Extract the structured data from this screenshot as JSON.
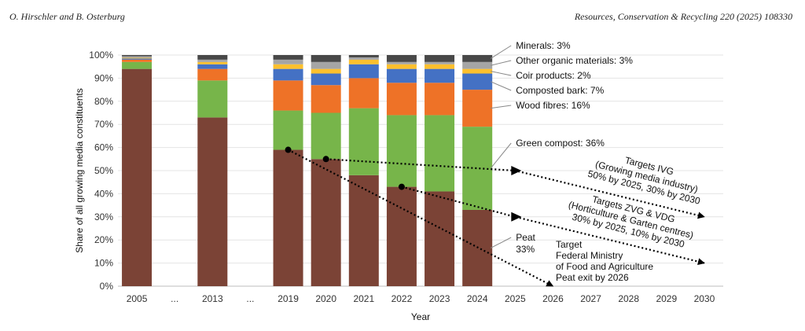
{
  "header": {
    "authors": "O. Hirschler and B. Osterburg",
    "journal": "Resources, Conservation & Recycling 220 (2025) 108330"
  },
  "chart_data": {
    "type": "bar",
    "stacked": true,
    "xlabel": "Year",
    "ylabel": "Share of all growing media constituents",
    "ylim": [
      0,
      100
    ],
    "yticks": [
      "0%",
      "10%",
      "20%",
      "30%",
      "40%",
      "50%",
      "60%",
      "70%",
      "80%",
      "90%",
      "100%"
    ],
    "categories": [
      "2005",
      "...",
      "2013",
      "...",
      "2019",
      "2020",
      "2021",
      "2022",
      "2023",
      "2024",
      "2025",
      "2026",
      "2027",
      "2028",
      "2029",
      "2030"
    ],
    "series": [
      {
        "name": "Peat",
        "color": "#7b4336",
        "values": [
          94,
          null,
          73,
          null,
          59,
          55,
          48,
          43,
          41,
          33,
          null,
          null,
          null,
          null,
          null,
          null
        ]
      },
      {
        "name": "Green compost",
        "color": "#77b54a",
        "values": [
          3,
          null,
          16,
          null,
          17,
          20,
          29,
          31,
          33,
          36,
          null,
          null,
          null,
          null,
          null,
          null
        ]
      },
      {
        "name": "Wood fibres",
        "color": "#ee7227",
        "values": [
          1,
          null,
          5,
          null,
          13,
          12,
          13,
          14,
          14,
          16,
          null,
          null,
          null,
          null,
          null,
          null
        ]
      },
      {
        "name": "Composted bark",
        "color": "#4471c4",
        "values": [
          0.5,
          null,
          2,
          null,
          5,
          5,
          6,
          6,
          6,
          7,
          null,
          null,
          null,
          null,
          null,
          null
        ]
      },
      {
        "name": "Coir products",
        "color": "#fcc02e",
        "values": [
          0.3,
          null,
          1,
          null,
          2,
          2,
          2,
          2,
          2,
          2,
          null,
          null,
          null,
          null,
          null,
          null
        ]
      },
      {
        "name": "Other organic materials",
        "color": "#a5a5a5",
        "values": [
          0.7,
          null,
          1,
          null,
          2,
          3,
          1,
          1,
          1,
          3,
          null,
          null,
          null,
          null,
          null,
          null
        ]
      },
      {
        "name": "Minerals",
        "color": "#484848",
        "values": [
          0.5,
          null,
          2,
          null,
          2,
          3,
          1,
          3,
          3,
          3,
          null,
          null,
          null,
          null,
          null,
          null
        ]
      }
    ],
    "series_labels": [
      {
        "series": "Minerals",
        "text": "Minerals: 3%"
      },
      {
        "series": "Other organic materials",
        "text": "Other organic materials: 3%"
      },
      {
        "series": "Coir products",
        "text": "Coir products: 2%"
      },
      {
        "series": "Composted bark",
        "text": "Composted bark: 7%"
      },
      {
        "series": "Wood fibres",
        "text": "Wood fibres: 16%"
      },
      {
        "series": "Green compost",
        "text": "Green compost: 36%"
      },
      {
        "series": "Peat",
        "text": "Peat",
        "text2": "33%"
      }
    ],
    "targets": [
      {
        "name": "Targets IVG",
        "lines": [
          "Targets IVG",
          "(Growing media industry)",
          "50% by 2025, 30% by 2030"
        ],
        "path": [
          {
            "x": "2020",
            "y": 55
          },
          {
            "x": "2025",
            "y": 50
          },
          {
            "x": "2030",
            "y": 30
          }
        ]
      },
      {
        "name": "Targets ZVG & VDG",
        "lines": [
          "Targets ZVG & VDG",
          "(Horticulture & Garten centres)",
          "30% by 2025, 10% by 2030"
        ],
        "path": [
          {
            "x": "2022",
            "y": 43
          },
          {
            "x": "2025",
            "y": 30
          },
          {
            "x": "2030",
            "y": 10
          }
        ]
      },
      {
        "name": "Target Federal Ministry",
        "lines": [
          "Target",
          "Federal Ministry",
          "of Food and Agriculture",
          "Peat exit by 2026"
        ],
        "path": [
          {
            "x": "2019",
            "y": 59
          },
          {
            "x": "2026",
            "y": 0
          }
        ]
      }
    ]
  }
}
